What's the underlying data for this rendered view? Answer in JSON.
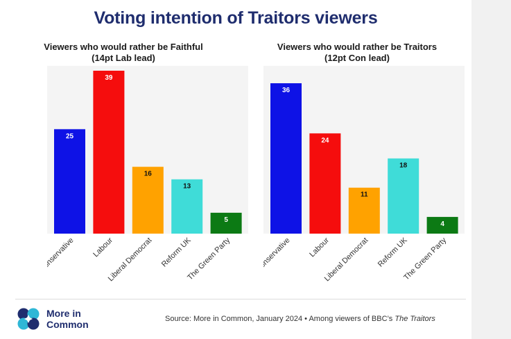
{
  "title": "Voting intention of Traitors viewers",
  "chart_data": [
    {
      "type": "bar",
      "title": "Viewers who would rather be Faithful",
      "subtitle": "(14pt Lab lead)",
      "categories": [
        "Conservative",
        "Labour",
        "Liberal Democrat",
        "Reform UK",
        "The Green Party"
      ],
      "values": [
        25,
        39,
        16,
        13,
        5
      ],
      "colors": [
        "#0e12e6",
        "#f50d0d",
        "#ffa200",
        "#3fdcd8",
        "#0c7a14"
      ],
      "ylim": [
        0,
        40
      ],
      "grid": false,
      "data_labels": true
    },
    {
      "type": "bar",
      "title": "Viewers who would rather be Traitors",
      "subtitle": "(12pt Con lead)",
      "categories": [
        "Conservative",
        "Labour",
        "Liberal Democrat",
        "Reform UK",
        "The Green Party"
      ],
      "values": [
        36,
        24,
        11,
        18,
        4
      ],
      "colors": [
        "#0e12e6",
        "#f50d0d",
        "#ffa200",
        "#3fdcd8",
        "#0c7a14"
      ],
      "ylim": [
        0,
        40
      ],
      "grid": false,
      "data_labels": true
    }
  ],
  "footer": {
    "logo_line1": "More in",
    "logo_line2": "Common",
    "source_prefix": "Source: More in Common, January 2024 • Among viewers of BBC’s ",
    "source_italic": "The Traitors"
  }
}
